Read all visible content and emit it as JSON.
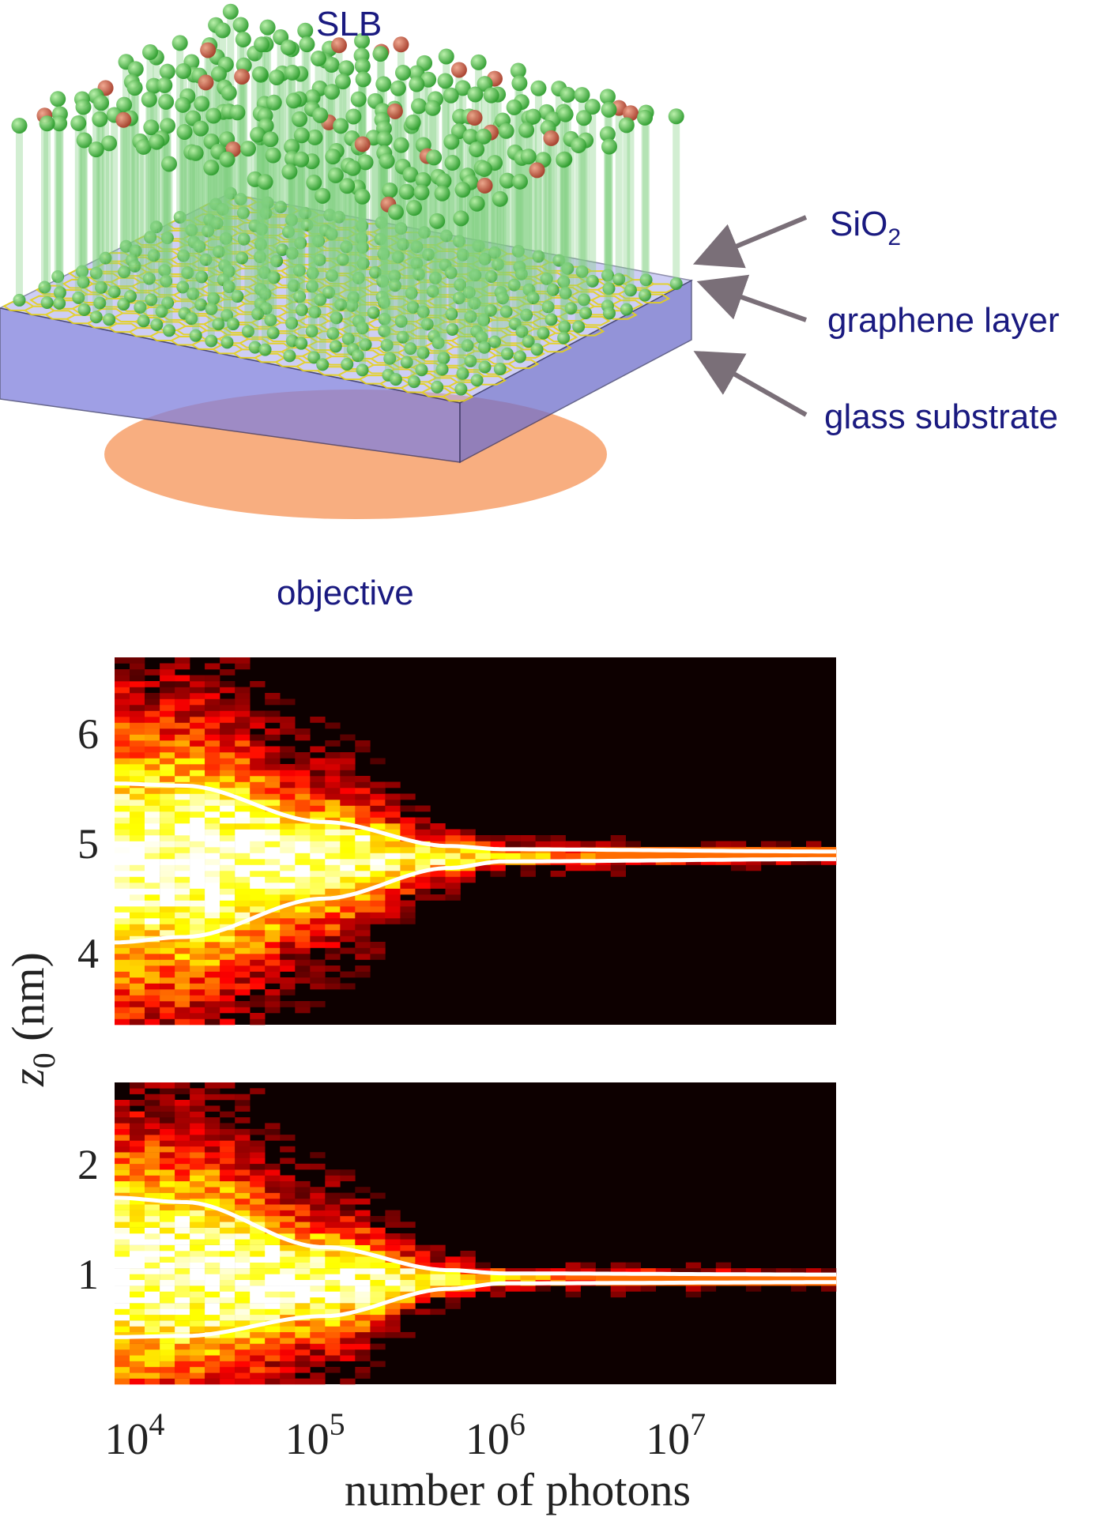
{
  "schematic": {
    "labels": {
      "slb": "SLB",
      "sio2_main": "SiO",
      "sio2_sub": "2",
      "graphene": "graphene layer",
      "glass": "glass substrate",
      "objective": "objective"
    },
    "colors": {
      "label": "#1a1a80",
      "lipid_head": "#3fbf3f",
      "probe_head": "#c0503a",
      "graphene": "#e6d21a",
      "substrate": "#8c8ce6",
      "objective": "#f7a06a",
      "arrow": "#7a6f78"
    }
  },
  "chart_data": {
    "type": "heatmap",
    "xlabel": "number of photons",
    "ylabel_main": "z",
    "ylabel_sub": "0",
    "ylabel_unit": " (nm)",
    "x_scale": "log",
    "xlim": [
      7000,
      70000000
    ],
    "x_ticks": [
      {
        "value": 10000,
        "base": "10",
        "exp": "4"
      },
      {
        "value": 100000,
        "base": "10",
        "exp": "5"
      },
      {
        "value": 1000000,
        "base": "10",
        "exp": "6"
      },
      {
        "value": 10000000,
        "base": "10",
        "exp": "7"
      }
    ],
    "colormap": "hot",
    "panels": [
      {
        "ylim": [
          3.35,
          6.7
        ],
        "y_ticks": [
          "4",
          "5",
          "6"
        ],
        "y_tick_values": [
          4,
          5,
          6
        ],
        "center": 4.95,
        "spread_low_photons": 0.7,
        "upper_envelope": [
          [
            7000,
            5.55
          ],
          [
            17000,
            5.53
          ],
          [
            100000,
            5.2
          ],
          [
            500000,
            4.98
          ],
          [
            1000000,
            4.95
          ],
          [
            70000000,
            4.93
          ]
        ],
        "lower_envelope": [
          [
            7000,
            4.1
          ],
          [
            17000,
            4.15
          ],
          [
            100000,
            4.5
          ],
          [
            500000,
            4.78
          ],
          [
            1000000,
            4.84
          ],
          [
            70000000,
            4.86
          ]
        ]
      },
      {
        "ylim": [
          0,
          2.75
        ],
        "y_ticks": [
          "1",
          "2"
        ],
        "y_tick_values": [
          1,
          2
        ],
        "center": 0.98,
        "spread_low_photons": 0.55,
        "upper_envelope": [
          [
            7000,
            1.7
          ],
          [
            17000,
            1.66
          ],
          [
            100000,
            1.25
          ],
          [
            500000,
            1.04
          ],
          [
            1000000,
            1.01
          ],
          [
            70000000,
            1.0
          ]
        ],
        "lower_envelope": [
          [
            7000,
            0.43
          ],
          [
            17000,
            0.44
          ],
          [
            100000,
            0.62
          ],
          [
            500000,
            0.87
          ],
          [
            1000000,
            0.92
          ],
          [
            70000000,
            0.93
          ]
        ]
      }
    ]
  }
}
